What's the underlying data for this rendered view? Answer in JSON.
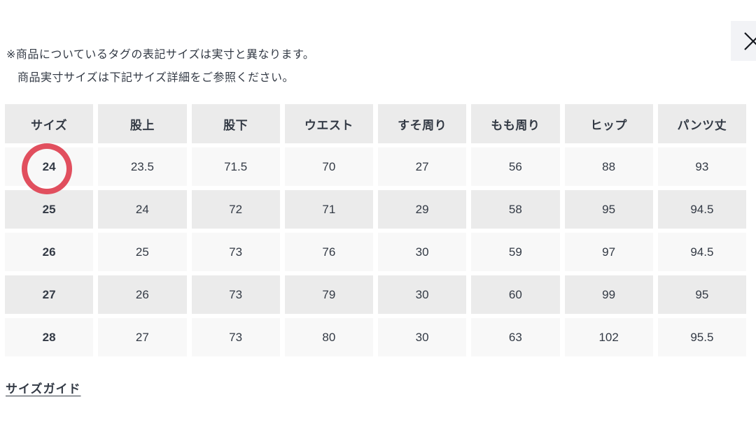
{
  "notice": {
    "line1": "※商品についているタグの表記サイズは実寸と異なります。",
    "line2": "商品実寸サイズは下記サイズ詳細をご参照ください。"
  },
  "close_button": {
    "icon": "×"
  },
  "table": {
    "headers": [
      "サイズ",
      "股上",
      "股下",
      "ウエスト",
      "すそ周り",
      "もも周り",
      "ヒップ",
      "パンツ丈"
    ],
    "rows": [
      {
        "size": "24",
        "values": [
          "23.5",
          "71.5",
          "70",
          "27",
          "56",
          "88",
          "93"
        ],
        "highlighted": true
      },
      {
        "size": "25",
        "values": [
          "24",
          "72",
          "71",
          "29",
          "58",
          "95",
          "94.5"
        ],
        "highlighted": false
      },
      {
        "size": "26",
        "values": [
          "25",
          "73",
          "76",
          "30",
          "59",
          "97",
          "94.5"
        ],
        "highlighted": false
      },
      {
        "size": "27",
        "values": [
          "26",
          "73",
          "79",
          "30",
          "60",
          "99",
          "95"
        ],
        "highlighted": false
      },
      {
        "size": "28",
        "values": [
          "27",
          "73",
          "80",
          "30",
          "63",
          "102",
          "95.5"
        ],
        "highlighted": false
      }
    ]
  },
  "link": {
    "label": "サイズガイド"
  },
  "colors": {
    "highlight_circle": "#E14F5E",
    "header_bg": "#EBEBEB",
    "row_light_bg": "#F8F8F8",
    "row_dark_bg": "#EBEBEB",
    "text": "#333A45",
    "close_button_bg": "#F2F3F6",
    "page_bg": "#FFFFFF"
  }
}
